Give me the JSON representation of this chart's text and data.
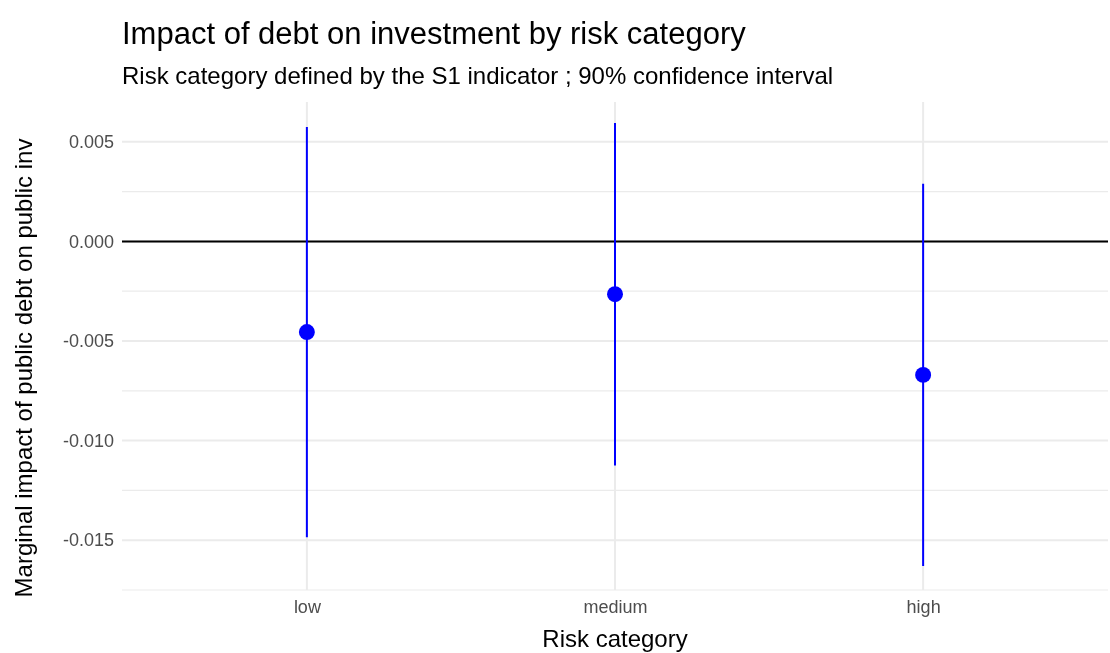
{
  "chart_data": {
    "type": "scatter",
    "title": "Impact of debt on investment by risk category",
    "subtitle": "Risk category defined by the S1 indicator ; 90% confidence interval",
    "xlabel": "Risk category",
    "ylabel": "Marginal impact of public debt on public inv",
    "categories": [
      "low",
      "medium",
      "high"
    ],
    "values": [
      -0.00455,
      -0.00265,
      -0.0067
    ],
    "errors": [
      [
        0.0103,
        0.0103
      ],
      [
        0.0086,
        0.0086
      ],
      [
        0.0096,
        0.0096
      ]
    ],
    "color": "#0000ff",
    "marker": "circle",
    "ylim": [
      -0.0175,
      0.007
    ],
    "yticks": [
      {
        "value": -0.0175,
        "label": null
      },
      {
        "value": -0.015,
        "label": "-0.015"
      },
      {
        "value": -0.0125,
        "label": null
      },
      {
        "value": -0.01,
        "label": "-0.010"
      },
      {
        "value": -0.0075,
        "label": null
      },
      {
        "value": -0.005,
        "label": "-0.005"
      },
      {
        "value": -0.0025,
        "label": null
      },
      {
        "value": 0,
        "label": "0.000"
      },
      {
        "value": 0.0025,
        "label": null
      },
      {
        "value": 0.005,
        "label": "0.005"
      }
    ],
    "grid": true,
    "ref_lines": [
      {
        "axis": "y",
        "value": 0,
        "color": "#000000"
      }
    ]
  }
}
